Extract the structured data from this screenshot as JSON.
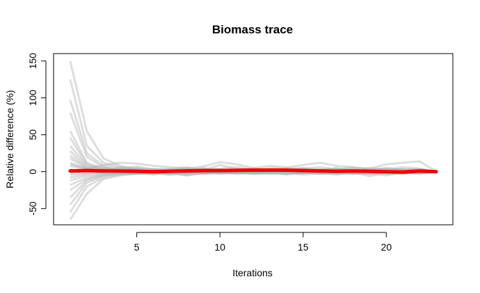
{
  "chart_data": {
    "type": "line",
    "title": "Biomass trace",
    "xlabel": "Iterations",
    "ylabel": "Relative difference (%)",
    "xlim": [
      0,
      24
    ],
    "ylim": [
      -72,
      160
    ],
    "xticks": [
      5,
      10,
      15,
      20
    ],
    "yticks": [
      -50,
      0,
      50,
      100,
      150
    ],
    "grid": false,
    "colors": {
      "trace": "#b3b3b3",
      "mean": "#ee0000"
    },
    "x": [
      1,
      2,
      3,
      4,
      5,
      6,
      7,
      8,
      9,
      10,
      11,
      12,
      13,
      14,
      15,
      16,
      17,
      18,
      19,
      20,
      21,
      22,
      23
    ],
    "series": [
      {
        "values": [
          150,
          55,
          18,
          8,
          3,
          2,
          1,
          3,
          2,
          1,
          2,
          3,
          2,
          1,
          3,
          2,
          1,
          2,
          3,
          2,
          1,
          2,
          0
        ]
      },
      {
        "values": [
          125,
          35,
          12,
          6,
          4,
          3,
          2,
          5,
          3,
          4,
          6,
          3,
          5,
          4,
          2,
          3,
          4,
          2,
          5,
          3,
          6,
          4,
          0
        ]
      },
      {
        "values": [
          97,
          25,
          8,
          5,
          7,
          3,
          4,
          6,
          2,
          9,
          4,
          2,
          3,
          5,
          4,
          6,
          3,
          4,
          2,
          5,
          3,
          2,
          0
        ]
      },
      {
        "values": [
          80,
          20,
          6,
          2,
          4,
          1,
          3,
          2,
          5,
          1,
          3,
          4,
          2,
          3,
          5,
          2,
          3,
          6,
          3,
          4,
          2,
          3,
          0
        ]
      },
      {
        "values": [
          55,
          12,
          4,
          3,
          1,
          2,
          -1,
          1,
          3,
          2,
          -1,
          2,
          1,
          3,
          1,
          -2,
          1,
          2,
          1,
          -1,
          2,
          1,
          0
        ]
      },
      {
        "values": [
          46,
          10,
          2,
          5,
          3,
          1,
          2,
          4,
          1,
          3,
          1,
          5,
          2,
          1,
          3,
          2,
          5,
          1,
          2,
          3,
          1,
          2,
          0
        ]
      },
      {
        "values": [
          35,
          8,
          5,
          1,
          2,
          4,
          1,
          2,
          3,
          1,
          2,
          1,
          4,
          2,
          1,
          3,
          2,
          1,
          3,
          1,
          2,
          4,
          0
        ]
      },
      {
        "values": [
          28,
          6,
          3,
          2,
          5,
          2,
          3,
          1,
          4,
          2,
          3,
          2,
          1,
          3,
          2,
          1,
          3,
          2,
          1,
          2,
          3,
          1,
          0
        ]
      },
      {
        "values": [
          22,
          5,
          2,
          4,
          1,
          3,
          2,
          3,
          1,
          2,
          1,
          3,
          2,
          1,
          4,
          2,
          1,
          3,
          2,
          1,
          2,
          3,
          0
        ]
      },
      {
        "values": [
          18,
          4,
          1,
          2,
          3,
          1,
          2,
          1,
          2,
          3,
          2,
          1,
          3,
          2,
          1,
          2,
          3,
          1,
          2,
          3,
          1,
          2,
          0
        ]
      },
      {
        "values": [
          12,
          3,
          2,
          1,
          2,
          2,
          1,
          2,
          3,
          1,
          2,
          2,
          1,
          3,
          2,
          1,
          2,
          2,
          1,
          2,
          3,
          1,
          0
        ]
      },
      {
        "values": [
          8,
          2,
          1,
          2,
          1,
          1,
          2,
          1,
          1,
          2,
          1,
          1,
          2,
          1,
          1,
          2,
          1,
          2,
          1,
          1,
          2,
          1,
          0
        ]
      },
      {
        "values": [
          3,
          1,
          0,
          1,
          0,
          1,
          0,
          1,
          0,
          1,
          0,
          0,
          1,
          0,
          1,
          0,
          1,
          0,
          0,
          1,
          0,
          1,
          0
        ]
      },
      {
        "values": [
          -2,
          0,
          -1,
          0,
          1,
          0,
          -1,
          0,
          1,
          0,
          0,
          -1,
          0,
          1,
          0,
          -1,
          0,
          1,
          0,
          0,
          -1,
          0,
          0
        ]
      },
      {
        "values": [
          -8,
          -3,
          -1,
          0,
          -2,
          1,
          0,
          -1,
          0,
          1,
          -1,
          0,
          1,
          0,
          -1,
          0,
          1,
          0,
          -1,
          0,
          1,
          0,
          0
        ]
      },
      {
        "values": [
          -12,
          -5,
          -2,
          -1,
          0,
          -1,
          -2,
          0,
          -1,
          0,
          -2,
          -1,
          0,
          -1,
          -2,
          0,
          -1,
          -2,
          0,
          -1,
          0,
          -1,
          0
        ]
      },
      {
        "values": [
          -18,
          -8,
          -3,
          -2,
          -1,
          -2,
          0,
          -1,
          -2,
          -1,
          0,
          -2,
          -1,
          0,
          -1,
          -2,
          0,
          -1,
          -2,
          0,
          -1,
          -2,
          0
        ]
      },
      {
        "values": [
          -25,
          -10,
          -4,
          -2,
          -3,
          -1,
          -2,
          -3,
          -1,
          -2,
          -1,
          -3,
          -2,
          -1,
          -2,
          -3,
          -1,
          -2,
          -1,
          -3,
          -2,
          -1,
          0
        ]
      },
      {
        "values": [
          -35,
          -12,
          -5,
          -3,
          -2,
          -4,
          -1,
          -2,
          -3,
          -1,
          -2,
          -1,
          -3,
          -2,
          -1,
          -2,
          -4,
          -1,
          -3,
          -2,
          -1,
          -2,
          0
        ]
      },
      {
        "values": [
          -45,
          -15,
          -6,
          -2,
          -3,
          -1,
          -4,
          -2,
          -1,
          -3,
          -2,
          -1,
          -2,
          -3,
          -1,
          -2,
          -1,
          -3,
          -2,
          -5,
          -1,
          -2,
          0
        ]
      },
      {
        "values": [
          -55,
          -20,
          -8,
          -4,
          -2,
          -3,
          -1,
          -5,
          -2,
          -1,
          -3,
          -2,
          -1,
          -4,
          -2,
          -1,
          -3,
          -2,
          -1,
          -2,
          -3,
          -1,
          0
        ]
      },
      {
        "values": [
          -65,
          -30,
          -10,
          -5,
          -3,
          -2,
          -4,
          -1,
          -3,
          -2,
          -1,
          -3,
          -2,
          -1,
          -4,
          -2,
          -1,
          -3,
          -2,
          -1,
          -2,
          -3,
          0
        ]
      },
      {
        "values": [
          10,
          4,
          9,
          12,
          11,
          8,
          6,
          4,
          7,
          13,
          10,
          5,
          8,
          6,
          9,
          12,
          8,
          6,
          4,
          10,
          12,
          14,
          0
        ]
      },
      {
        "values": [
          -4,
          -2,
          5,
          3,
          1,
          -3,
          -2,
          -5,
          -1,
          2,
          -2,
          -1,
          2,
          -2,
          1,
          -3,
          -2,
          -1,
          -6,
          -1,
          -2,
          -1,
          0
        ]
      }
    ],
    "mean": {
      "values": [
        1,
        1.5,
        1,
        0.8,
        0.5,
        0,
        0.5,
        1,
        1.5,
        1.5,
        1.8,
        2,
        2,
        2,
        1.5,
        1,
        0.5,
        0.8,
        0.5,
        0,
        -0.5,
        0.8,
        0
      ]
    }
  }
}
